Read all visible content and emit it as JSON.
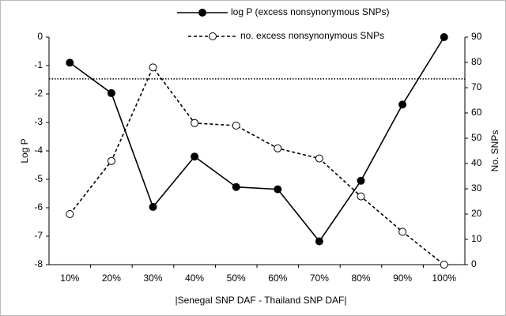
{
  "chart_data": {
    "type": "line",
    "x_label": "|Senegal SNP DAF - Thailand SNP DAF|",
    "y_label": "Log P",
    "y2_label": "No. SNPs",
    "categories": [
      "10%",
      "20%",
      "30%",
      "40%",
      "50%",
      "60%",
      "70%",
      "80%",
      "90%",
      "100%"
    ],
    "series": [
      {
        "name": "log P (excess nonsynonymous SNPs)",
        "color": "#000000",
        "marker": "filled",
        "dash": "solid",
        "values": [
          -0.9,
          -1.97,
          -5.97,
          -4.2,
          -5.27,
          -5.35,
          -7.18,
          -5.05,
          -2.37,
          0
        ]
      },
      {
        "name": "no. excess nonsynonymous SNPs",
        "color": "#000000",
        "marker": "open",
        "dash": "dashed",
        "axis": "y2",
        "values": [
          20,
          41,
          78,
          56,
          55,
          46,
          42,
          27,
          13,
          0
        ]
      }
    ],
    "reference_line": {
      "value": -1.47,
      "style": "dotted"
    },
    "ylim": [
      -8,
      0
    ],
    "yticks": [
      0,
      -1,
      -2,
      -3,
      -4,
      -5,
      -6,
      -7,
      -8
    ],
    "y2lim": [
      0,
      90
    ],
    "y2ticks": [
      0,
      10,
      20,
      30,
      40,
      50,
      60,
      70,
      80,
      90
    ],
    "legend": "top-center"
  }
}
